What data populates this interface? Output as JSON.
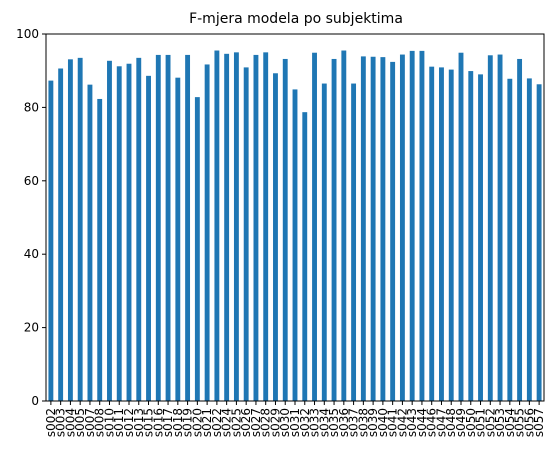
{
  "chart_data": {
    "type": "bar",
    "title": "F-mjera modela po subjektima",
    "xlabel": "",
    "ylabel": "",
    "ylim": [
      0,
      100
    ],
    "yticks": [
      0,
      20,
      40,
      60,
      80,
      100
    ],
    "grid": false,
    "legend": "none",
    "bar_color": "#1f77b4",
    "categories": [
      "s002",
      "s003",
      "s004",
      "s005",
      "s007",
      "s008",
      "s010",
      "s011",
      "s012",
      "s013",
      "s015",
      "s016",
      "s017",
      "s018",
      "s019",
      "s020",
      "s021",
      "s022",
      "s024",
      "s025",
      "s026",
      "s027",
      "s028",
      "s029",
      "s030",
      "s031",
      "s032",
      "s033",
      "s034",
      "s035",
      "s036",
      "s037",
      "s038",
      "s039",
      "s040",
      "s041",
      "s042",
      "s043",
      "s044",
      "s046",
      "s047",
      "s048",
      "s049",
      "s050",
      "s051",
      "s052",
      "s053",
      "s054",
      "s055",
      "s056",
      "s057"
    ],
    "values": [
      87.3,
      90.6,
      93.1,
      93.5,
      86.2,
      82.3,
      92.7,
      91.2,
      91.9,
      93.5,
      88.6,
      94.3,
      94.3,
      88.1,
      94.3,
      82.8,
      91.7,
      95.5,
      94.6,
      95.0,
      90.9,
      94.3,
      95.0,
      89.3,
      93.2,
      84.9,
      78.7,
      94.9,
      86.5,
      93.2,
      95.5,
      86.5,
      93.9,
      93.8,
      93.7,
      92.4,
      94.4,
      95.4,
      95.4,
      91.1,
      90.9,
      90.3,
      94.9,
      89.9,
      89.0,
      94.2,
      94.4,
      87.8,
      93.2,
      87.9,
      86.3
    ]
  }
}
